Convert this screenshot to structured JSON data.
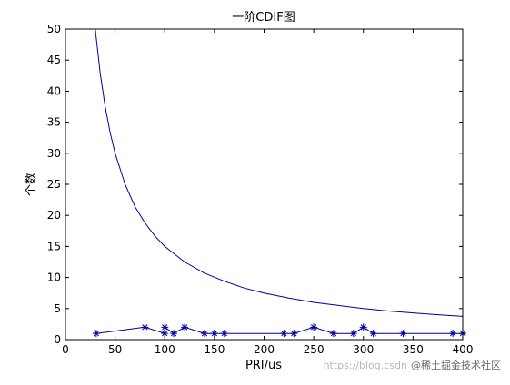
{
  "chart_data": {
    "type": "line",
    "title": "一阶CDIF图",
    "xlabel": "PRI/us",
    "ylabel": "个数",
    "xlim": [
      0,
      400
    ],
    "ylim": [
      0,
      50
    ],
    "xticks": [
      0,
      50,
      100,
      150,
      200,
      250,
      300,
      350,
      400
    ],
    "yticks": [
      0,
      5,
      10,
      15,
      20,
      25,
      30,
      35,
      40,
      45,
      50
    ],
    "grid": false,
    "legend": "none",
    "series": [
      {
        "style": "line",
        "color": "#0000a0",
        "x": [
          30,
          35,
          40,
          45,
          50,
          60,
          70,
          80,
          90,
          100,
          120,
          140,
          160,
          180,
          200,
          225,
          250,
          275,
          300,
          325,
          350,
          375,
          400
        ],
        "y": [
          50,
          42.9,
          37.5,
          33.3,
          30,
          25,
          21.4,
          18.8,
          16.7,
          15,
          12.5,
          10.7,
          9.4,
          8.3,
          7.5,
          6.7,
          6.0,
          5.5,
          5.0,
          4.6,
          4.3,
          4.0,
          3.75
        ]
      },
      {
        "style": "line-star",
        "color": "#0000a0",
        "x": [
          31,
          80,
          100,
          100,
          109,
          120,
          140,
          150,
          160,
          220,
          230,
          250,
          270,
          290,
          300,
          310,
          340,
          390,
          400
        ],
        "y": [
          1,
          2,
          1,
          2,
          1,
          2,
          1,
          1,
          1,
          1,
          1,
          2,
          1,
          1,
          2,
          1,
          1,
          1,
          1
        ]
      }
    ]
  },
  "watermark": {
    "url": "https://blog.csdn",
    "brand": "@稀土掘金技术社区"
  }
}
